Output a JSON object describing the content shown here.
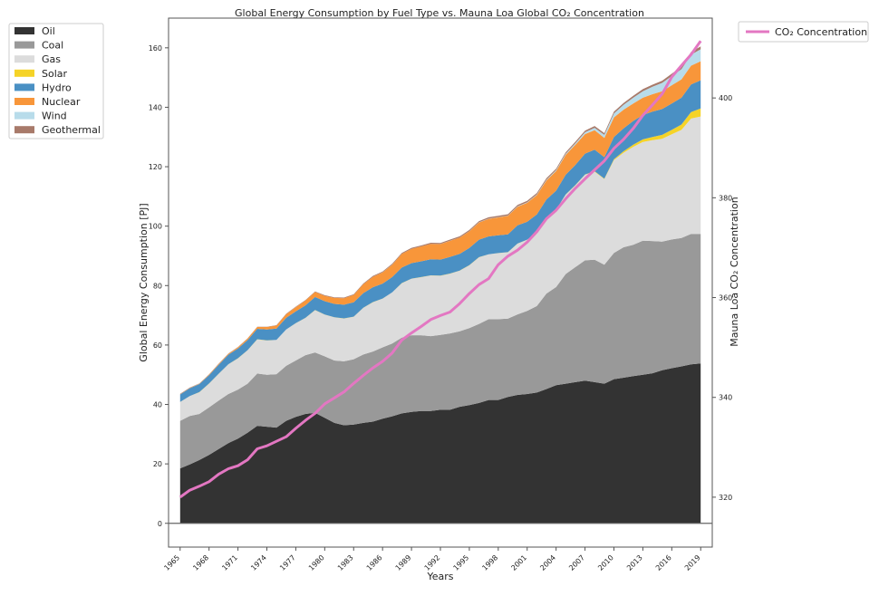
{
  "chart_data": {
    "type": "area",
    "title": "Global Energy Consumption by Fuel Type vs. Mauna Loa Global CO₂ Concentration",
    "xlabel": "Years",
    "ylabel": "Global Energy Consumption [PJ]",
    "y2label": "Mauna Loa CO₂ Concentration",
    "xlim": [
      1963.8,
      2020.2
    ],
    "ylim": [
      -8,
      170
    ],
    "y2lim": [
      310,
      416
    ],
    "x_ticks": [
      1965,
      1968,
      1971,
      1974,
      1977,
      1980,
      1983,
      1986,
      1989,
      1992,
      1995,
      1998,
      2001,
      2004,
      2007,
      2010,
      2013,
      2016,
      2019
    ],
    "y_ticks": [
      0,
      20,
      40,
      60,
      80,
      100,
      120,
      140,
      160
    ],
    "y2_ticks": [
      320,
      340,
      360,
      380,
      400
    ],
    "stacked": true,
    "legend_position": "outside-left",
    "legend2_position": "outside-right",
    "years": [
      1965,
      1966,
      1967,
      1968,
      1969,
      1970,
      1971,
      1972,
      1973,
      1974,
      1975,
      1976,
      1977,
      1978,
      1979,
      1980,
      1981,
      1982,
      1983,
      1984,
      1985,
      1986,
      1987,
      1988,
      1989,
      1990,
      1991,
      1992,
      1993,
      1994,
      1995,
      1996,
      1997,
      1998,
      1999,
      2000,
      2001,
      2002,
      2003,
      2004,
      2005,
      2006,
      2007,
      2008,
      2009,
      2010,
      2011,
      2012,
      2013,
      2014,
      2015,
      2016,
      2017,
      2018,
      2019
    ],
    "series": [
      {
        "name": "Oil",
        "color": "#333333",
        "values": [
          18.5,
          19.8,
          21.3,
          23,
          25,
          27,
          28.5,
          30.5,
          32.8,
          32.5,
          32.2,
          34.5,
          35.8,
          36.8,
          37.2,
          35.5,
          33.8,
          33,
          33.2,
          33.8,
          34.2,
          35.2,
          36,
          37,
          37.5,
          37.8,
          37.8,
          38.2,
          38.2,
          39.2,
          39.8,
          40.5,
          41.5,
          41.5,
          42.5,
          43.2,
          43.5,
          44,
          45.2,
          46.5,
          47,
          47.5,
          48,
          47.5,
          47,
          48.5,
          49,
          49.5,
          50,
          50.5,
          51.5,
          52.2,
          52.8,
          53.5,
          53.8
        ]
      },
      {
        "name": "Coal",
        "color": "#999999",
        "values": [
          16,
          16.3,
          15.5,
          16,
          16.3,
          16.5,
          16.5,
          16.5,
          17.6,
          17.5,
          18,
          18.5,
          19,
          19.8,
          20.3,
          20.7,
          21,
          21.5,
          22,
          23,
          23.6,
          24,
          24.5,
          25.5,
          25.8,
          25.5,
          25.2,
          25.2,
          25.7,
          25.4,
          25.9,
          26.6,
          27.2,
          27.2,
          26.4,
          27.1,
          28,
          29.1,
          32.1,
          33,
          36.9,
          38.7,
          40.5,
          41.2,
          40,
          42.5,
          43.9,
          44.2,
          45.1,
          44.5,
          43.3,
          43.3,
          43.2,
          43.9,
          43.6
        ]
      },
      {
        "name": "Gas",
        "color": "#dcdcdc",
        "values": [
          6.3,
          6.7,
          7.3,
          8,
          9,
          10,
          10.5,
          11.2,
          11.5,
          11.5,
          11.5,
          12.2,
          12.5,
          12.5,
          14.2,
          14,
          14.5,
          14.4,
          14.3,
          15.7,
          16.6,
          16.4,
          17.2,
          18.3,
          19,
          19.5,
          20.4,
          19.9,
          20.1,
          20.4,
          21.1,
          22.4,
          21.8,
          22.2,
          22.3,
          23.8,
          23.9,
          24.7,
          25.5,
          26,
          26.7,
          27.5,
          28.8,
          29.6,
          28.8,
          31.2,
          31.8,
          33,
          33.2,
          33.9,
          34.6,
          35.4,
          36.4,
          38.8,
          39.5
        ]
      },
      {
        "name": "Solar",
        "color": "#f5d327",
        "values": [
          0.05,
          0.05,
          0.05,
          0.05,
          0.05,
          0.05,
          0.05,
          0.05,
          0.05,
          0.05,
          0.05,
          0.05,
          0.05,
          0.05,
          0.05,
          0.05,
          0.05,
          0.05,
          0.05,
          0.05,
          0.05,
          0.05,
          0.05,
          0.05,
          0.05,
          0.05,
          0.05,
          0.05,
          0.05,
          0.05,
          0.05,
          0.05,
          0.05,
          0.05,
          0.05,
          0.05,
          0.05,
          0.05,
          0.05,
          0.05,
          0.1,
          0.1,
          0.1,
          0.2,
          0.2,
          0.3,
          0.5,
          0.7,
          0.9,
          1.1,
          1.3,
          1.5,
          1.8,
          2.2,
          2.7
        ]
      },
      {
        "name": "Hydro",
        "color": "#4a90c4",
        "values": [
          2.5,
          2.6,
          2.7,
          2.8,
          3,
          3.2,
          3.3,
          3.4,
          3.5,
          3.7,
          3.8,
          3.9,
          4,
          4.2,
          4.4,
          4.5,
          4.5,
          4.6,
          4.8,
          4.9,
          5,
          5,
          5.1,
          5.2,
          5.2,
          5.3,
          5.4,
          5.4,
          5.6,
          5.6,
          5.8,
          5.9,
          6,
          6,
          6,
          6.1,
          6,
          6.1,
          6.1,
          6.4,
          6.6,
          6.8,
          7,
          7.2,
          7.2,
          7.5,
          7.7,
          8,
          8.2,
          8.5,
          8.7,
          8.9,
          9,
          9.3,
          9.5
        ]
      },
      {
        "name": "Nuclear",
        "color": "#f8963a",
        "values": [
          0.1,
          0.1,
          0.15,
          0.2,
          0.25,
          0.3,
          0.4,
          0.5,
          0.6,
          0.8,
          1,
          1.2,
          1.4,
          1.6,
          1.7,
          1.8,
          2,
          2.2,
          2.5,
          3,
          3.5,
          3.8,
          4.2,
          4.6,
          4.8,
          5,
          5.2,
          5.2,
          5.4,
          5.5,
          5.6,
          5.8,
          5.9,
          6,
          6.2,
          6.3,
          6.4,
          6.5,
          6.4,
          6.6,
          6.7,
          6.8,
          6.6,
          6.6,
          6.5,
          6.6,
          6.3,
          5.9,
          5.8,
          5.9,
          6,
          6.1,
          6.2,
          6.3,
          6.4
        ]
      },
      {
        "name": "Wind",
        "color": "#b8dcea",
        "values": [
          0.01,
          0.01,
          0.01,
          0.01,
          0.01,
          0.01,
          0.01,
          0.01,
          0.01,
          0.01,
          0.01,
          0.01,
          0.01,
          0.01,
          0.01,
          0.01,
          0.01,
          0.01,
          0.01,
          0.01,
          0.01,
          0.01,
          0.01,
          0.01,
          0.01,
          0.01,
          0.01,
          0.02,
          0.03,
          0.04,
          0.05,
          0.06,
          0.07,
          0.08,
          0.1,
          0.12,
          0.15,
          0.2,
          0.25,
          0.3,
          0.35,
          0.45,
          0.6,
          0.8,
          1,
          1.3,
          1.6,
          1.9,
          2.2,
          2.5,
          2.8,
          3.1,
          3.4,
          3.7,
          4
        ]
      },
      {
        "name": "Geothermal",
        "color": "#a87a6a",
        "values": [
          0.1,
          0.1,
          0.1,
          0.1,
          0.1,
          0.1,
          0.1,
          0.1,
          0.1,
          0.1,
          0.1,
          0.15,
          0.15,
          0.15,
          0.15,
          0.2,
          0.2,
          0.2,
          0.2,
          0.25,
          0.3,
          0.3,
          0.3,
          0.3,
          0.35,
          0.35,
          0.35,
          0.35,
          0.4,
          0.4,
          0.4,
          0.4,
          0.45,
          0.45,
          0.45,
          0.45,
          0.5,
          0.5,
          0.5,
          0.5,
          0.5,
          0.55,
          0.55,
          0.6,
          0.6,
          0.6,
          0.65,
          0.65,
          0.7,
          0.7,
          0.75,
          0.8,
          0.85,
          0.9,
          0.95
        ]
      }
    ],
    "co2_series": {
      "name": "CO₂ Concentration",
      "color": "#e377c2",
      "values": [
        320,
        321.4,
        322.2,
        323.1,
        324.6,
        325.7,
        326.3,
        327.5,
        329.7,
        330.3,
        331.2,
        332.1,
        333.8,
        335.4,
        336.8,
        338.7,
        339.9,
        341.1,
        342.8,
        344.4,
        345.9,
        347.2,
        348.9,
        351.5,
        352.9,
        354.2,
        355.6,
        356.4,
        357.1,
        358.8,
        360.8,
        362.6,
        363.8,
        366.6,
        368.3,
        369.5,
        371.1,
        373.2,
        375.8,
        377.5,
        379.8,
        381.9,
        383.8,
        385.6,
        387.4,
        389.9,
        391.7,
        393.9,
        396.5,
        398.6,
        400.8,
        404.2,
        406.5,
        408.7,
        411.4
      ]
    }
  }
}
